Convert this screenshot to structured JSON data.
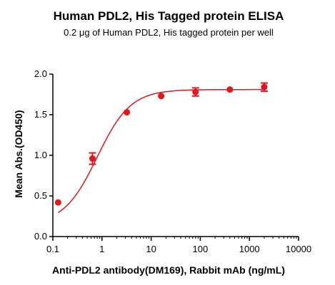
{
  "chart_data": {
    "type": "scatter",
    "title": "Human PDL2, His Tagged protein ELISA",
    "subtitle_prefix": "0.2 ",
    "subtitle_unit": "μg",
    "subtitle_suffix": " of Human PDL2, His tagged protein per well",
    "xlabel": "Anti-PDL2 antibody(DM169), Rabbit mAb (ng/mL)",
    "ylabel": "Mean Abs.(OD450)",
    "x_scale": "log",
    "xlim": [
      0.1,
      10000
    ],
    "ylim": [
      0.0,
      2.0
    ],
    "x_ticks": [
      0.1,
      1,
      10,
      100,
      1000,
      10000
    ],
    "x_tick_labels": [
      "0.1",
      "1",
      "10",
      "100",
      "1000",
      "10000"
    ],
    "y_ticks": [
      0.0,
      0.5,
      1.0,
      1.5,
      2.0
    ],
    "y_tick_labels": [
      "0.0",
      "0.5",
      "1.0",
      "1.5",
      "2.0"
    ],
    "grid": false,
    "color": "#e8141c",
    "fit": "four-parameter logistic",
    "series": [
      {
        "x": [
          0.128,
          0.64,
          3.2,
          16,
          80,
          400,
          2000
        ],
        "y": [
          0.42,
          0.96,
          1.53,
          1.73,
          1.78,
          1.81,
          1.84
        ],
        "error": [
          0.0,
          0.07,
          0.0,
          0.0,
          0.05,
          0.0,
          0.05
        ]
      }
    ]
  }
}
